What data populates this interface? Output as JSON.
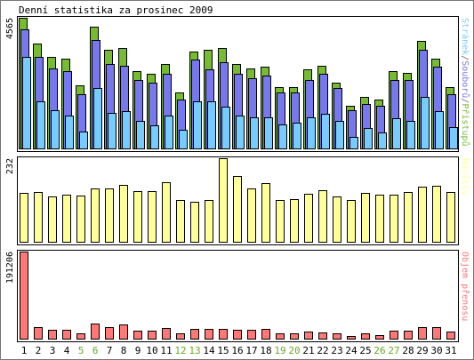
{
  "chart_data": {
    "type": "bar",
    "title": "Denní statistika za prosinec 2009",
    "categories": [
      "1",
      "2",
      "3",
      "4",
      "5",
      "6",
      "7",
      "8",
      "9",
      "10",
      "11",
      "12",
      "13",
      "14",
      "15",
      "16",
      "17",
      "18",
      "19",
      "20",
      "21",
      "22",
      "23",
      "24",
      "25",
      "26",
      "27",
      "28",
      "29",
      "30",
      "31"
    ],
    "weekend_days": [
      "5",
      "6",
      "12",
      "13",
      "19",
      "20",
      "26",
      "27"
    ],
    "colors": {
      "background": "#ffffff",
      "weekday_label": "#000000",
      "weekend_label": "#66aa22",
      "pristupu": "#77bb33",
      "souboru": "#7777ee",
      "stranek": "#77ccff",
      "navstev": "#ffff99",
      "objem": "#ff7777",
      "outline": "#000000"
    },
    "panels": [
      {
        "id": "hits",
        "label_parts": [
          {
            "text": "Stránek",
            "color": "#77ccff"
          },
          {
            "text": "/",
            "color": "#666666"
          },
          {
            "text": "Souborů",
            "color": "#7777ee"
          },
          {
            "text": "/",
            "color": "#666666"
          },
          {
            "text": "Přístupů",
            "color": "#77bb33"
          }
        ],
        "ymax_label": "4565",
        "ymax": 4565,
        "series": [
          {
            "name": "Přístupů",
            "color": "#77bb33",
            "values": [
              4550,
              3650,
              3200,
              3150,
              2200,
              4250,
              3450,
              3500,
              2700,
              2600,
              2950,
              1950,
              3400,
              3450,
              3500,
              2950,
              2800,
              2850,
              2150,
              2150,
              2750,
              2900,
              2300,
              1500,
              1800,
              1700,
              2700,
              2650,
              3750,
              3150,
              2150
            ]
          },
          {
            "name": "Souborů",
            "color": "#7777ee",
            "values": [
              4150,
              3200,
              2800,
              2700,
              1900,
              3800,
              2950,
              2900,
              2400,
              2300,
              2600,
              1700,
              3100,
              2750,
              3000,
              2600,
              2450,
              2550,
              1950,
              1950,
              2400,
              2600,
              2100,
              1350,
              1550,
              1500,
              2400,
              2400,
              3450,
              2850,
              1900
            ]
          },
          {
            "name": "Stránek",
            "color": "#77ccff",
            "values": [
              3200,
              1650,
              1350,
              1150,
              600,
              2100,
              1250,
              1300,
              950,
              800,
              1150,
              650,
              1650,
              1650,
              1450,
              1150,
              1100,
              1100,
              850,
              900,
              1100,
              1200,
              950,
              400,
              700,
              550,
              1050,
              950,
              1800,
              1300,
              750
            ]
          }
        ]
      },
      {
        "id": "visits",
        "label_parts": [
          {
            "text": "Návštěv",
            "color": "#ffff99"
          }
        ],
        "ymax_label": "232",
        "ymax": 232,
        "series": [
          {
            "name": "Návštěv",
            "color": "#ffff99",
            "values": [
              136,
              139,
              127,
              130,
              128,
              149,
              149,
              158,
              141,
              140,
              166,
              117,
              110,
              116,
              232,
              182,
              149,
              162,
              115,
              118,
              133,
              142,
              125,
              116,
              135,
              131,
              131,
              137,
              153,
              156,
              137
            ]
          }
        ]
      },
      {
        "id": "volume",
        "label_parts": [
          {
            "text": "Objem přenosu",
            "color": "#ff7777"
          }
        ],
        "ymax_label": "191206",
        "ymax": 191206,
        "series": [
          {
            "name": "Objem přenosu",
            "color": "#ff7777",
            "values": [
              191206,
              26000,
              19500,
              19000,
              12000,
              34000,
              25000,
              32000,
              17000,
              17000,
              24000,
              12000,
              21000,
              21000,
              21000,
              19000,
              19000,
              21000,
              11000,
              11500,
              16000,
              14500,
              12500,
              6000,
              11000,
              8000,
              17000,
              17000,
              26000,
              25000,
              16000
            ]
          }
        ]
      }
    ]
  }
}
